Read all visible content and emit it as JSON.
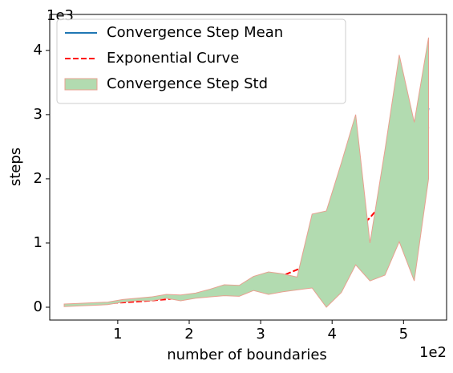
{
  "chart_data": {
    "type": "line",
    "xlabel": "number of boundaries",
    "ylabel": "steps",
    "x_offset_label": "1e2",
    "y_offset_label": "1e3",
    "x": [
      0.25,
      0.45,
      0.66,
      0.86,
      1.07,
      1.27,
      1.47,
      1.68,
      1.88,
      2.09,
      2.29,
      2.49,
      2.7,
      2.9,
      3.11,
      3.31,
      3.51,
      3.72,
      3.92,
      4.13,
      4.33,
      4.53,
      4.74,
      4.94,
      5.15,
      5.35
    ],
    "series": [
      {
        "name": "Convergence Step Mean",
        "color": "#1f77b4",
        "style": "solid",
        "values": [
          0.03,
          0.04,
          0.05,
          0.06,
          0.1,
          0.12,
          0.13,
          0.17,
          0.15,
          0.18,
          0.22,
          0.27,
          0.27,
          0.38,
          0.38,
          0.37,
          0.36,
          0.88,
          0.77,
          1.25,
          1.83,
          0.72,
          1.55,
          2.49,
          1.65,
          3.1
        ]
      },
      {
        "name": "Exponential Curve",
        "color": "#ff0000",
        "style": "dashed",
        "values": [
          0.037,
          0.043,
          0.052,
          0.061,
          0.073,
          0.087,
          0.103,
          0.123,
          0.146,
          0.175,
          0.207,
          0.246,
          0.293,
          0.348,
          0.416,
          0.493,
          0.585,
          0.699,
          0.83,
          0.991,
          1.176,
          1.395,
          1.667,
          1.977,
          2.362,
          2.802
        ]
      },
      {
        "name": "Convergence Step Std",
        "color": "#b2dbb0",
        "edgecolor": "#e8a090",
        "style": "band",
        "upper": [
          0.05,
          0.06,
          0.07,
          0.08,
          0.12,
          0.14,
          0.16,
          0.2,
          0.19,
          0.22,
          0.28,
          0.35,
          0.34,
          0.48,
          0.55,
          0.52,
          0.47,
          1.45,
          1.5,
          2.25,
          3.0,
          1.0,
          2.45,
          3.93,
          2.88,
          4.2
        ],
        "lower": [
          0.01,
          0.02,
          0.03,
          0.04,
          0.08,
          0.1,
          0.1,
          0.14,
          0.1,
          0.14,
          0.16,
          0.18,
          0.17,
          0.26,
          0.2,
          0.24,
          0.27,
          0.3,
          0.0,
          0.23,
          0.66,
          0.41,
          0.5,
          1.02,
          0.41,
          2.0
        ]
      }
    ],
    "xlim": [
      0.0475,
      5.6025
    ],
    "ylim": [
      -0.2,
      4.56
    ],
    "xticks": [
      1,
      2,
      3,
      4,
      5
    ],
    "yticks": [
      0,
      1,
      2,
      3,
      4
    ],
    "legend": "upper left"
  }
}
